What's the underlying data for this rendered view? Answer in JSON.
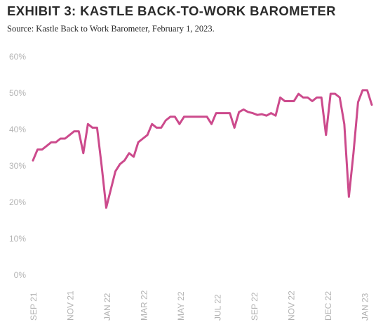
{
  "header": {
    "title": "EXHIBIT 3: KASTLE BACK-TO-WORK BAROMETER",
    "subtitle": "Source: Kastle Back to Work Barometer, February 1, 2023."
  },
  "chart_data": {
    "type": "line",
    "title": "EXHIBIT 3: KASTLE BACK-TO-WORK BAROMETER",
    "subtitle": "Source: Kastle Back to Work Barometer, February 1, 2023.",
    "xlabel": "",
    "ylabel": "",
    "x_tick_labels": [
      "SEP 21",
      "NOV 21",
      "JAN 22",
      "MAR 22",
      "MAY 22",
      "JUL 22",
      "SEP 22",
      "NOV 22",
      "DEC 22",
      "JAN 23"
    ],
    "y_tick_labels": [
      "0%",
      "10%",
      "20%",
      "30%",
      "40%",
      "50%",
      "60%"
    ],
    "ylim": [
      0,
      60
    ],
    "grid": false,
    "legend": "none",
    "line_color": "#cc4a8c",
    "series": [
      {
        "values": [
          31.5,
          34.5,
          34.5,
          35.5,
          36.5,
          36.5,
          37.5,
          37.5,
          38.5,
          39.5,
          39.5,
          33.5,
          41.5,
          40.5,
          40.5,
          30,
          18.5,
          23.5,
          28.5,
          30.5,
          31.5,
          33.5,
          32.5,
          36.5,
          37.5,
          38.5,
          41.5,
          40.5,
          40.5,
          42.5,
          43.5,
          43.5,
          41.5,
          43.5,
          43.5,
          43.5,
          43.5,
          43.5,
          43.5,
          41.5,
          44.5,
          44.5,
          44.5,
          44.5,
          40.5,
          44.8,
          45.5,
          44.8,
          44.5,
          44,
          44.2,
          43.8,
          44.5,
          43.8,
          48.8,
          47.8,
          47.8,
          47.8,
          49.8,
          48.8,
          48.8,
          47.8,
          48.8,
          48.8,
          38.5,
          49.8,
          49.8,
          48.8,
          41.5,
          21.5,
          33.5,
          47.5,
          50.8,
          50.8,
          46.8
        ]
      }
    ]
  }
}
